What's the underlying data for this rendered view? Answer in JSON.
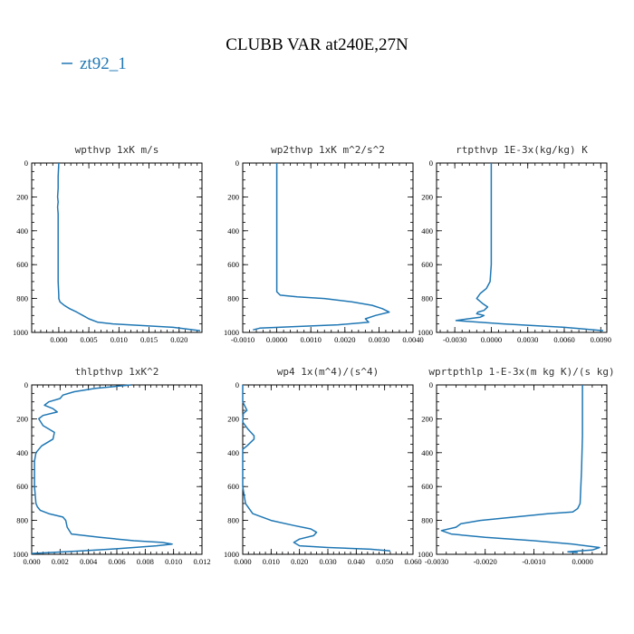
{
  "title": "CLUBB VAR at240E,27N",
  "legend": {
    "label": "zt92_1",
    "color": "#1f77b4"
  },
  "chart_data": [
    {
      "type": "line",
      "title": "wpthvp  1xK m/s",
      "xlim": [
        -0.0045,
        0.0238
      ],
      "ylim": [
        1000,
        0
      ],
      "xticks": [
        0.0,
        0.005,
        0.01,
        0.015,
        0.02
      ],
      "xtick_labels": [
        "0.000",
        "0.005",
        "0.010",
        "0.015",
        "0.020"
      ],
      "yticks": [
        0,
        200,
        400,
        600,
        800,
        1000
      ],
      "series": [
        {
          "color": "#1f77b4",
          "x": [
            0.0,
            -0.0001,
            -0.0001,
            -0.0002,
            -0.0001,
            -0.0002,
            -0.0001,
            -0.0001,
            -0.0001,
            -0.0001,
            -0.0001,
            -0.0001,
            0.0,
            0.0,
            0.0002,
            0.0009,
            0.0018,
            0.003,
            0.004,
            0.005,
            0.0065,
            0.009,
            0.014,
            0.019,
            0.0235
          ],
          "y": [
            0,
            80,
            150,
            200,
            230,
            260,
            300,
            350,
            400,
            500,
            600,
            700,
            780,
            800,
            820,
            840,
            860,
            880,
            900,
            920,
            940,
            950,
            960,
            970,
            990
          ]
        }
      ]
    },
    {
      "type": "line",
      "title": "wp2thvp  1xK m^2/s^2",
      "xlim": [
        -0.001,
        0.004
      ],
      "ylim": [
        1000,
        0
      ],
      "xticks": [
        -0.001,
        0.0,
        0.001,
        0.002,
        0.003,
        0.004
      ],
      "xtick_labels": [
        "-0.0010",
        "0.0000",
        "0.0010",
        "0.0020",
        "0.0030",
        "0.0040"
      ],
      "yticks": [
        0,
        200,
        400,
        600,
        800,
        1000
      ],
      "series": [
        {
          "color": "#1f77b4",
          "x": [
            0.0,
            0.0,
            0.0,
            0.0,
            0.0,
            0.0,
            0.0,
            0.0,
            0.0,
            0.0001,
            0.0006,
            0.0014,
            0.0022,
            0.0028,
            0.0031,
            0.0033,
            0.0029,
            0.0026,
            0.0027,
            0.0018,
            0.0006,
            -0.0005,
            -0.0007
          ],
          "y": [
            0,
            100,
            200,
            300,
            400,
            500,
            600,
            700,
            760,
            780,
            790,
            800,
            820,
            840,
            860,
            880,
            900,
            920,
            940,
            955,
            965,
            975,
            985
          ]
        }
      ]
    },
    {
      "type": "line",
      "title": "rtpthvp  1E-3x(kg/kg) K",
      "xlim": [
        -0.0045,
        0.0095
      ],
      "ylim": [
        1000,
        0
      ],
      "xticks": [
        -0.003,
        0.0,
        0.003,
        0.006,
        0.009
      ],
      "xtick_labels": [
        "-0.0030",
        "0.0000",
        "0.0030",
        "0.0060",
        "0.0090"
      ],
      "yticks": [
        0,
        200,
        400,
        600,
        800,
        1000
      ],
      "series": [
        {
          "color": "#1f77b4",
          "x": [
            0.0,
            0.0,
            0.0,
            0.0,
            0.0,
            0.0,
            0.0,
            -0.0001,
            -0.0004,
            -0.0009,
            -0.0012,
            -0.0007,
            -0.0003,
            -0.0006,
            -0.0011,
            -0.0012,
            -0.0006,
            -0.0009,
            -0.0019,
            -0.0029,
            0.001,
            0.006,
            0.0092
          ],
          "y": [
            0,
            100,
            200,
            300,
            400,
            500,
            600,
            700,
            740,
            770,
            800,
            830,
            850,
            870,
            880,
            890,
            900,
            910,
            920,
            930,
            950,
            970,
            990
          ]
        }
      ]
    },
    {
      "type": "line",
      "title": "thlpthvp  1xK^2",
      "xlim": [
        0.0,
        0.012
      ],
      "ylim": [
        1000,
        0
      ],
      "xticks": [
        0.0,
        0.002,
        0.004,
        0.006,
        0.008,
        0.01,
        0.012
      ],
      "xtick_labels": [
        "0.000",
        "0.002",
        "0.004",
        "0.006",
        "0.008",
        "0.010",
        "0.012"
      ],
      "yticks": [
        0,
        200,
        400,
        600,
        800,
        1000
      ],
      "series": [
        {
          "color": "#1f77b4",
          "x": [
            0.007,
            0.0045,
            0.003,
            0.0022,
            0.002,
            0.0012,
            0.0009,
            0.0015,
            0.0018,
            0.0008,
            0.0005,
            0.0008,
            0.0016,
            0.0015,
            0.0007,
            0.0003,
            0.0002,
            0.0002,
            0.0002,
            0.0003,
            0.0004,
            0.0006,
            0.0012,
            0.0022,
            0.0024,
            0.0025,
            0.0028,
            0.0048,
            0.0072,
            0.0092,
            0.0099,
            0.0088,
            0.0072,
            0.0055,
            0.0035,
            0.0012,
            0.0
          ],
          "y": [
            0,
            20,
            40,
            60,
            80,
            100,
            120,
            140,
            160,
            180,
            200,
            240,
            280,
            320,
            360,
            400,
            450,
            500,
            600,
            700,
            720,
            740,
            760,
            780,
            800,
            840,
            880,
            900,
            920,
            930,
            940,
            950,
            960,
            970,
            980,
            990,
            995
          ]
        }
      ]
    },
    {
      "type": "line",
      "title": "wp4  1x(m^4)/(s^4)",
      "xlim": [
        0.0,
        0.06
      ],
      "ylim": [
        1000,
        0
      ],
      "xticks": [
        0.0,
        0.01,
        0.02,
        0.03,
        0.04,
        0.05,
        0.06
      ],
      "xtick_labels": [
        "0.000",
        "0.010",
        "0.020",
        "0.030",
        "0.040",
        "0.050",
        "0.060"
      ],
      "yticks": [
        0,
        200,
        400,
        600,
        800,
        1000
      ],
      "series": [
        {
          "color": "#1f77b4",
          "x": [
            0.0,
            0.0,
            0.0015,
            0.0008,
            0.0002,
            0.0,
            0.0018,
            0.004,
            0.004,
            0.0015,
            0.0,
            0.0,
            0.0,
            0.0,
            0.001,
            0.0035,
            0.01,
            0.018,
            0.024,
            0.026,
            0.025,
            0.02,
            0.018,
            0.02,
            0.03,
            0.045,
            0.052
          ],
          "y": [
            0,
            100,
            150,
            160,
            170,
            220,
            260,
            300,
            320,
            360,
            380,
            400,
            500,
            600,
            700,
            760,
            800,
            830,
            850,
            870,
            890,
            910,
            930,
            950,
            960,
            970,
            980
          ]
        }
      ]
    },
    {
      "type": "line",
      "title": "wprtpthlp  1-E-3x(m kg K)/(s kg)",
      "xlim": [
        -0.003,
        0.0005
      ],
      "ylim": [
        1000,
        0
      ],
      "xticks": [
        -0.003,
        -0.002,
        -0.001,
        0.0
      ],
      "xtick_labels": [
        "-0.0030",
        "-0.0020",
        "-0.0010",
        "0.0000"
      ],
      "yticks": [
        0,
        200,
        400,
        600,
        800,
        1000
      ],
      "series": [
        {
          "color": "#1f77b4",
          "x": [
            0.0,
            0.0,
            0.0,
            -2e-05,
            -5e-05,
            -0.0001,
            -0.0002,
            -0.0007,
            -0.0014,
            -0.0021,
            -0.0025,
            -0.0026,
            -0.0029,
            -0.0027,
            -0.002,
            -0.001,
            -0.0002,
            0.00035,
            0.0002,
            -0.0003,
            -0.0001
          ],
          "y": [
            0,
            100,
            300,
            500,
            700,
            730,
            750,
            760,
            780,
            800,
            820,
            840,
            860,
            880,
            900,
            920,
            940,
            960,
            975,
            985,
            990
          ]
        }
      ]
    }
  ]
}
